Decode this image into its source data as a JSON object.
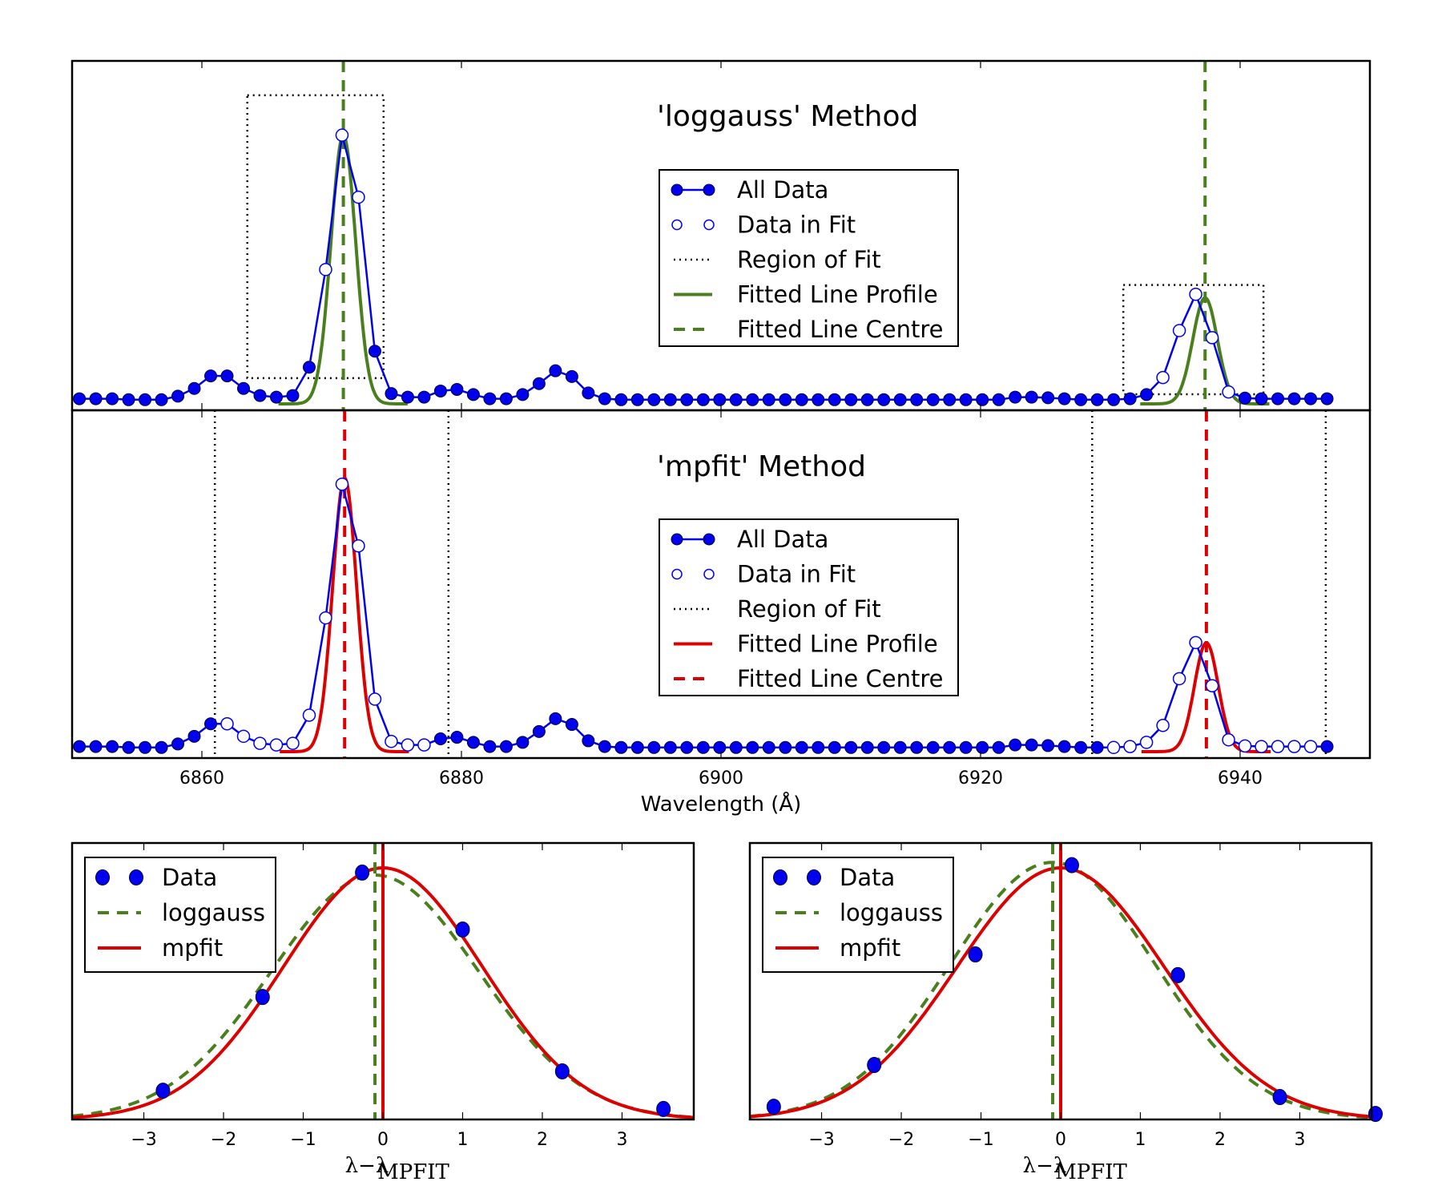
{
  "chart_data": [
    {
      "type": "line",
      "panel": "top",
      "title": "'loggauss' Method",
      "xlabel": "",
      "ylabel": "",
      "xlim": [
        6850,
        6950
      ],
      "ylim": [
        0,
        1
      ],
      "xticks": [
        6860,
        6880,
        6900,
        6920,
        6940
      ],
      "grid": false,
      "legend_position": "upper-center",
      "legend": [
        "All Data",
        "Data in Fit",
        "Region of Fit",
        "Fitted Line Profile",
        "Fitted Line Centre"
      ],
      "fit_color": "#4a7f1e",
      "regions_of_fit": [
        {
          "x": [
            6863.5,
            6874.0
          ],
          "y": [
            0.08,
            0.96
          ]
        },
        {
          "x": [
            6931.0,
            6941.8
          ],
          "y": [
            0.03,
            0.37
          ]
        }
      ],
      "fitted_centres": [
        6870.9,
        6937.3
      ],
      "fitted_profiles": [
        {
          "centre": 6870.9,
          "amplitude": 0.835,
          "sigma": 0.95,
          "baseline": 0.0
        },
        {
          "centre": 6937.3,
          "amplitude": 0.33,
          "sigma": 0.95,
          "baseline": 0.0
        }
      ],
      "fit_point_ranges": [
        [
          6868.3,
          6872.4
        ],
        [
          6933.7,
          6939.8
        ]
      ]
    },
    {
      "type": "line",
      "panel": "middle",
      "title": "'mpfit' Method",
      "xlabel": "Wavelength (Å)",
      "ylabel": "",
      "xlim": [
        6850,
        6950
      ],
      "ylim": [
        0,
        1
      ],
      "xticks": [
        6860,
        6880,
        6900,
        6920,
        6940
      ],
      "grid": false,
      "legend_position": "upper-center",
      "legend": [
        "All Data",
        "Data in Fit",
        "Region of Fit",
        "Fitted Line Profile",
        "Fitted Line Centre"
      ],
      "fit_color": "#dd0000",
      "regions_of_fit_vlines": [
        6861.0,
        6879.0,
        6928.6,
        6946.6
      ],
      "fitted_centres": [
        6871.0,
        6937.4
      ],
      "fitted_profiles": [
        {
          "centre": 6871.0,
          "amplitude": 0.855,
          "sigma": 0.92,
          "baseline": 0.0
        },
        {
          "centre": 6937.4,
          "amplitude": 0.34,
          "sigma": 0.92,
          "baseline": 0.0
        }
      ],
      "fit_point_ranges": [
        [
          6861.5,
          6878.0
        ],
        [
          6929.0,
          6946.5
        ]
      ]
    },
    {
      "type": "scatter",
      "panel": "bottom-left",
      "xlabel": "λ−λ_MPFIT",
      "xlim": [
        -3.9,
        3.9
      ],
      "ylim": [
        0,
        1
      ],
      "xticks": [
        -3,
        -2,
        -1,
        0,
        1,
        2,
        3
      ],
      "xtick_labels": [
        "−3",
        "−2",
        "−1",
        "0",
        "1",
        "2",
        "3"
      ],
      "legend_position": "upper-left",
      "legend": [
        "Data",
        "loggauss",
        "mpfit"
      ],
      "points": {
        "x": [
          -2.76,
          -1.51,
          -0.26,
          1.0,
          2.25,
          3.52
        ],
        "y": [
          0.104,
          0.443,
          0.893,
          0.687,
          0.174,
          0.038
        ]
      },
      "loggauss": {
        "centre": -0.1,
        "amplitude": 0.884,
        "sigma": 1.3
      },
      "mpfit": {
        "centre": 0.0,
        "amplitude": 0.91,
        "sigma": 1.25
      },
      "loggauss_centre": -0.1,
      "mpfit_centre": 0.0
    },
    {
      "type": "scatter",
      "panel": "bottom-right",
      "xlabel": "λ−λ_MPFIT",
      "xlim": [
        -3.9,
        3.9
      ],
      "ylim": [
        0,
        1
      ],
      "xticks": [
        -3,
        -2,
        -1,
        0,
        1,
        2,
        3
      ],
      "xtick_labels": [
        "−3",
        "−2",
        "−1",
        "0",
        "1",
        "2",
        "3"
      ],
      "legend_position": "upper-left",
      "legend": [
        "Data",
        "loggauss",
        "mpfit"
      ],
      "points": {
        "x": [
          -3.6,
          -2.34,
          -1.07,
          0.14,
          1.47,
          2.75,
          3.95
        ],
        "y": [
          0.046,
          0.197,
          0.597,
          0.92,
          0.522,
          0.081,
          0.02
        ]
      },
      "loggauss": {
        "centre": -0.1,
        "amplitude": 0.93,
        "sigma": 1.28
      },
      "mpfit": {
        "centre": 0.0,
        "amplitude": 0.91,
        "sigma": 1.3
      },
      "loggauss_centre": -0.1,
      "mpfit_centre": 0.0
    }
  ],
  "spectrum": {
    "x_start": 6850.56,
    "x_step": 1.265,
    "values": [
      0.016,
      0.016,
      0.016,
      0.013,
      0.013,
      0.013,
      0.024,
      0.048,
      0.087,
      0.087,
      0.048,
      0.026,
      0.021,
      0.026,
      0.114,
      0.418,
      0.836,
      0.643,
      0.164,
      0.032,
      0.021,
      0.021,
      0.04,
      0.045,
      0.029,
      0.016,
      0.016,
      0.029,
      0.063,
      0.103,
      0.085,
      0.034,
      0.016,
      0.013,
      0.013,
      0.013,
      0.013,
      0.013,
      0.013,
      0.013,
      0.013,
      0.013,
      0.013,
      0.013,
      0.013,
      0.013,
      0.013,
      0.013,
      0.013,
      0.013,
      0.013,
      0.013,
      0.013,
      0.013,
      0.013,
      0.013,
      0.013,
      0.021,
      0.021,
      0.019,
      0.016,
      0.013,
      0.013,
      0.013,
      0.016,
      0.029,
      0.082,
      0.228,
      0.341,
      0.206,
      0.037,
      0.018,
      0.016,
      0.016,
      0.016,
      0.016,
      0.016
    ]
  },
  "labels": {
    "top_title": "'loggauss' Method",
    "mid_title": "'mpfit' Method",
    "xlabel_main": "Wavelength (Å)",
    "xlabel_small_main": "λ−λ",
    "xlabel_small_sub": "MPFIT",
    "legend_main": [
      "All Data",
      "Data in Fit",
      "Region of Fit",
      "Fitted Line Profile",
      "Fitted Line Centre"
    ],
    "legend_small": [
      "Data",
      "loggauss",
      "mpfit"
    ],
    "xtick_main": [
      "6860",
      "6880",
      "6900",
      "6920",
      "6940"
    ],
    "xtick_small": [
      "−3",
      "−2",
      "−1",
      "0",
      "1",
      "2",
      "3"
    ]
  },
  "colors": {
    "data": "#0000ee",
    "loggauss": "#4a7f1e",
    "mpfit": "#dd0000",
    "region": "#000000"
  }
}
